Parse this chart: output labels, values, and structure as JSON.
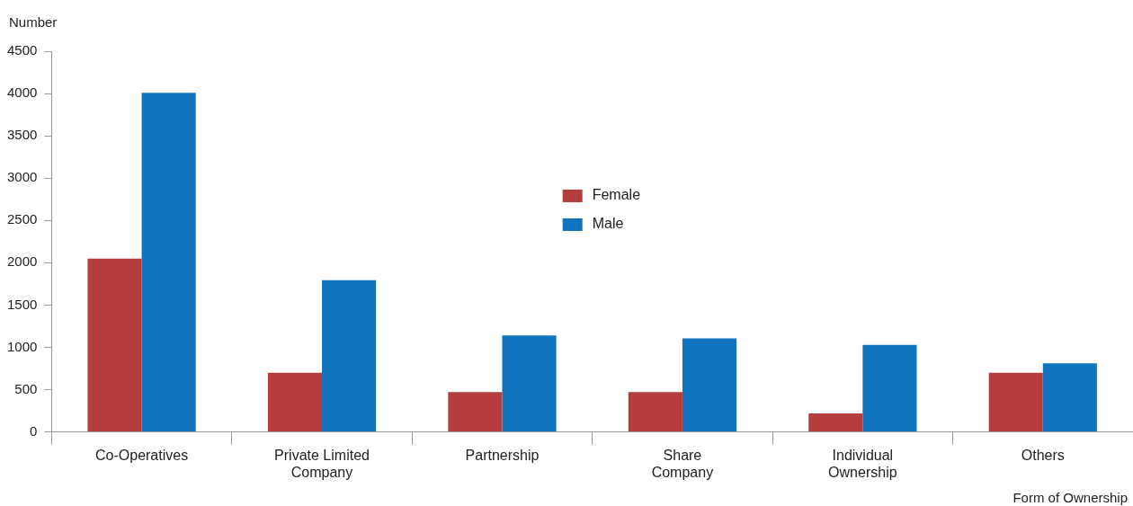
{
  "chart_data": {
    "type": "bar",
    "ylabel": "Number",
    "xlabel": "Form of Ownership",
    "categories": [
      "Co-Operatives",
      "Private Limited Company",
      "Partnership",
      "Share Company",
      "Individual Ownership",
      "Others"
    ],
    "series": [
      {
        "name": "Female",
        "color": "#b53d3d",
        "values": [
          2050,
          700,
          470,
          470,
          220,
          700
        ]
      },
      {
        "name": "Male",
        "color": "#1174be",
        "values": [
          4010,
          1795,
          1140,
          1105,
          1030,
          810
        ]
      }
    ],
    "ylim": [
      0,
      4500
    ],
    "yticks": [
      0,
      500,
      1000,
      1500,
      2000,
      2500,
      3000,
      3500,
      4000,
      4500
    ],
    "grid": false,
    "legend": "top"
  }
}
